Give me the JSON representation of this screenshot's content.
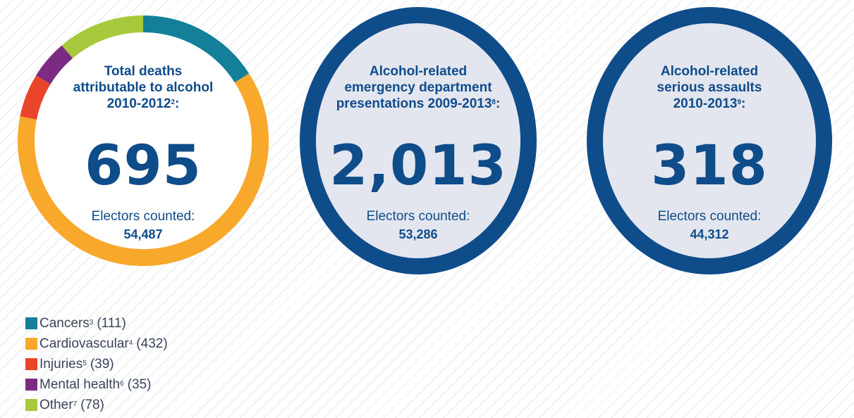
{
  "chart_data": {
    "type": "pie",
    "title": "Total deaths attributable to alcohol 2010-2012",
    "title_footnote": "2",
    "total": "695",
    "categories": [
      "Cancers",
      "Cardiovascular",
      "Injuries",
      "Mental health",
      "Other"
    ],
    "values": [
      111,
      432,
      39,
      35,
      78
    ],
    "footnotes": [
      "3",
      "4",
      "5",
      "6",
      "7"
    ],
    "colors": [
      "#137f99",
      "#f8a82b",
      "#e9452b",
      "#7c2b83",
      "#a8c93b"
    ],
    "legend_position": "bottom-left"
  },
  "stats": [
    {
      "title_lines": [
        "Total deaths",
        "attributable to alcohol",
        "2010-2012"
      ],
      "footnote": "2",
      "value": "695",
      "sublabel": "Electors counted:",
      "subvalue": "54,487"
    },
    {
      "title_lines": [
        "Alcohol-related",
        "emergency department",
        "presentations 2009-2013"
      ],
      "footnote": "8",
      "value": "2,013",
      "sublabel": "Electors counted:",
      "subvalue": "53,286"
    },
    {
      "title_lines": [
        "Alcohol-related",
        "serious assaults",
        "2010-2013"
      ],
      "footnote": "9",
      "value": "318",
      "sublabel": "Electors counted:",
      "subvalue": "44,312"
    }
  ],
  "legend": [
    {
      "label": "Cancers",
      "footnote": "3",
      "count": "(111)",
      "color": "#137f99"
    },
    {
      "label": "Cardiovascular",
      "footnote": "4",
      "count": "(432)",
      "color": "#f8a82b"
    },
    {
      "label": "Injuries",
      "footnote": "5",
      "count": "(39)",
      "color": "#e9452b"
    },
    {
      "label": "Mental health",
      "footnote": "6",
      "count": "(35)",
      "color": "#7c2b83"
    },
    {
      "label": "Other",
      "footnote": "7",
      "count": "(78)",
      "color": "#a8c93b"
    }
  ],
  "colors": {
    "navy": "#0f4c8a",
    "circle_fill": "#e3e6ef",
    "legend_text": "#3a4458"
  }
}
